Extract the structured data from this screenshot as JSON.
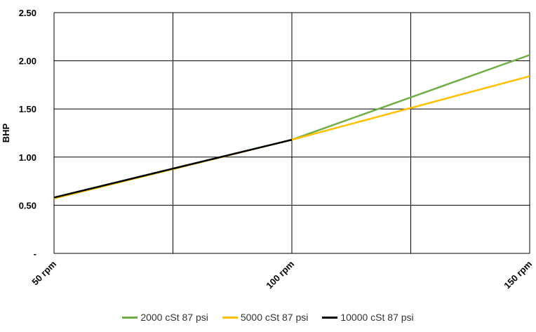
{
  "chart_data": {
    "type": "line",
    "ylabel": "BHP",
    "xlabel": "",
    "x": [
      "50 rpm",
      "",
      "100 rpm",
      "",
      "150 rpm"
    ],
    "ylim": [
      0,
      2.5
    ],
    "yticks": [
      "-",
      "0.50",
      "1.00",
      "1.50",
      "2.00",
      "2.50"
    ],
    "grid": true,
    "legend_position": "bottom",
    "series": [
      {
        "name": "2000 cSt 87 psi",
        "color": "#70ad47",
        "values": [
          0.58,
          null,
          1.18,
          null,
          2.06
        ]
      },
      {
        "name": "5000 cSt 87 psi",
        "color": "#ffc000",
        "values": [
          0.57,
          null,
          1.18,
          null,
          1.84
        ]
      },
      {
        "name": "10000 cSt 87 psi",
        "color": "#000000",
        "values": [
          0.58,
          null,
          1.18,
          null,
          null
        ]
      }
    ]
  }
}
